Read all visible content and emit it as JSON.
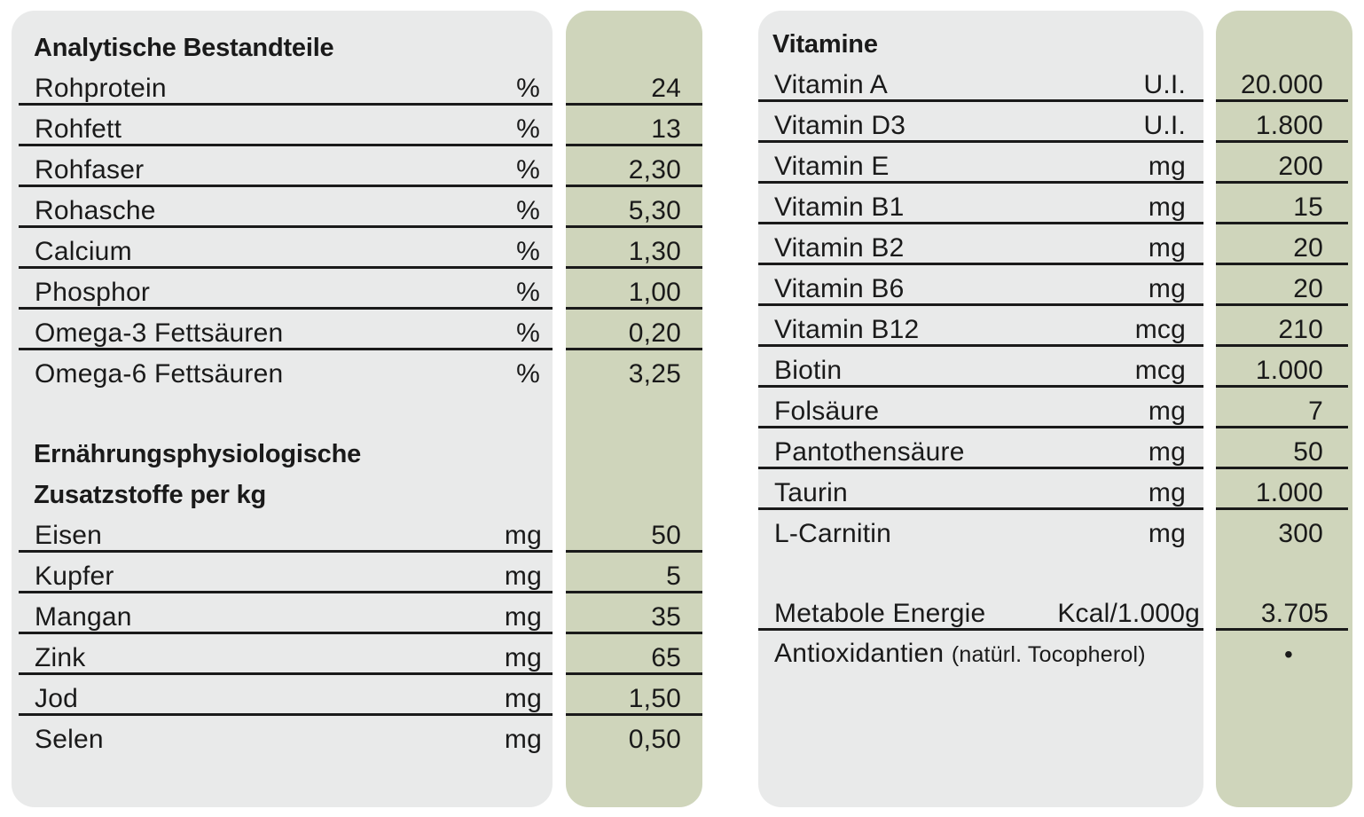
{
  "analytic": {
    "heading": "Analytische Bestandteile",
    "rows": [
      {
        "name": "Rohprotein",
        "unit": "%",
        "value": "24"
      },
      {
        "name": "Rohfett",
        "unit": "%",
        "value": "13"
      },
      {
        "name": "Rohfaser",
        "unit": "%",
        "value": "2,30"
      },
      {
        "name": "Rohasche",
        "unit": "%",
        "value": "5,30"
      },
      {
        "name": "Calcium",
        "unit": "%",
        "value": "1,30"
      },
      {
        "name": "Phosphor",
        "unit": "%",
        "value": "1,00"
      },
      {
        "name": "Omega-3 Fettsäuren",
        "unit": "%",
        "value": "0,20"
      },
      {
        "name": "Omega-6 Fettsäuren",
        "unit": "%",
        "value": "3,25"
      }
    ]
  },
  "additives": {
    "heading_line1": "Ernährungsphysiologische",
    "heading_line2": "Zusatzstoffe per kg",
    "rows": [
      {
        "name": "Eisen",
        "unit": "mg",
        "value": "50"
      },
      {
        "name": "Kupfer",
        "unit": "mg",
        "value": "5"
      },
      {
        "name": "Mangan",
        "unit": "mg",
        "value": "35"
      },
      {
        "name": "Zink",
        "unit": "mg",
        "value": "65"
      },
      {
        "name": "Jod",
        "unit": "mg",
        "value": "1,50"
      },
      {
        "name": "Selen",
        "unit": "mg",
        "value": "0,50"
      }
    ]
  },
  "vitamins": {
    "heading": "Vitamine",
    "rows": [
      {
        "name": "Vitamin A",
        "unit": "U.I.",
        "value": "20.000"
      },
      {
        "name": "Vitamin D3",
        "unit": "U.I.",
        "value": "1.800"
      },
      {
        "name": "Vitamin E",
        "unit": "mg",
        "value": "200"
      },
      {
        "name": "Vitamin B1",
        "unit": "mg",
        "value": "15"
      },
      {
        "name": "Vitamin B2",
        "unit": "mg",
        "value": "20"
      },
      {
        "name": "Vitamin B6",
        "unit": "mg",
        "value": "20"
      },
      {
        "name": "Vitamin B12",
        "unit": "mcg",
        "value": "210"
      },
      {
        "name": "Biotin",
        "unit": "mcg",
        "value": "1.000"
      },
      {
        "name": "Folsäure",
        "unit": "mg",
        "value": "7"
      },
      {
        "name": "Pantothensäure",
        "unit": "mg",
        "value": "50"
      },
      {
        "name": "Taurin",
        "unit": "mg",
        "value": "1.000"
      },
      {
        "name": "L-Carnitin",
        "unit": "mg",
        "value": "300"
      }
    ],
    "energy": {
      "name": "Metabole Energie",
      "unit": "Kcal/1.000g",
      "value": "3.705"
    },
    "antioxidants": {
      "name": "Antioxidantien",
      "note": "(natürl. Tocopherol)",
      "value": "•"
    }
  }
}
